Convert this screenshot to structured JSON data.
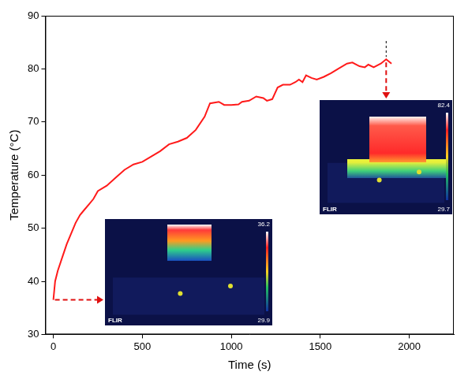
{
  "chart_data": {
    "type": "line",
    "x_label": "Time (s)",
    "y_label": "Temperature (°C)",
    "x": [
      0,
      10,
      25,
      50,
      75,
      100,
      125,
      150,
      175,
      200,
      225,
      250,
      300,
      350,
      400,
      450,
      500,
      550,
      600,
      650,
      700,
      750,
      800,
      850,
      880,
      930,
      960,
      1000,
      1040,
      1060,
      1100,
      1140,
      1180,
      1200,
      1230,
      1260,
      1290,
      1330,
      1360,
      1380,
      1400,
      1420,
      1450,
      1480,
      1520,
      1560,
      1600,
      1650,
      1680,
      1720,
      1750,
      1770,
      1800,
      1840,
      1870,
      1900
    ],
    "values": [
      36.5,
      40,
      42,
      44.5,
      47,
      49,
      51,
      52.5,
      53.5,
      54.5,
      55.5,
      57,
      58,
      59.5,
      61,
      62,
      62.5,
      63.5,
      64.5,
      65.8,
      66.3,
      67,
      68.5,
      71,
      73.5,
      73.8,
      73.2,
      73.2,
      73.3,
      73.8,
      74,
      74.8,
      74.5,
      74,
      74.3,
      76.5,
      77,
      77,
      77.5,
      78,
      77.5,
      78.8,
      78.3,
      78,
      78.5,
      79.2,
      80,
      81,
      81.2,
      80.5,
      80.3,
      80.8,
      80.3,
      81,
      81.8,
      81
    ],
    "color": "#ff1a1a",
    "xlim": [
      -45,
      2250
    ],
    "xticks": [
      0,
      500,
      1000,
      1500,
      2000
    ],
    "ylim": [
      30,
      90
    ],
    "yticks": [
      30,
      40,
      50,
      60,
      70,
      80,
      90
    ],
    "grid": false,
    "annotations": [
      {
        "x": 0,
        "texts": [
          "36.2",
          "29.9",
          "FLIR"
        ]
      },
      {
        "x": 1870,
        "texts": [
          "82.4",
          "29.7",
          "FLIR"
        ]
      }
    ]
  }
}
